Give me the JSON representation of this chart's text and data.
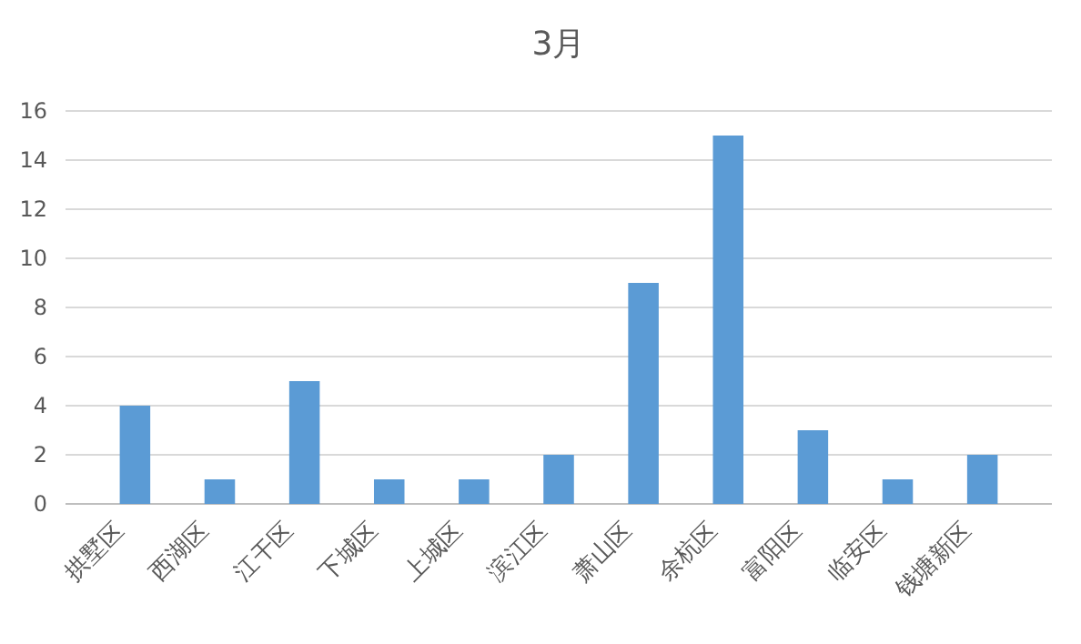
{
  "chart_data": {
    "type": "bar",
    "title": "3月",
    "categories": [
      "拱墅区",
      "西湖区",
      "江干区",
      "下城区",
      "上城区",
      "滨江区",
      "萧山区",
      "余杭区",
      "富阳区",
      "临安区",
      "钱塘新区"
    ],
    "values": [
      4,
      1,
      5,
      1,
      1,
      2,
      9,
      15,
      3,
      1,
      2
    ],
    "color": "#5b9bd5",
    "ylim": [
      0,
      16
    ],
    "yticks": [
      0,
      2,
      4,
      6,
      8,
      10,
      12,
      14,
      16
    ],
    "grid": true
  }
}
